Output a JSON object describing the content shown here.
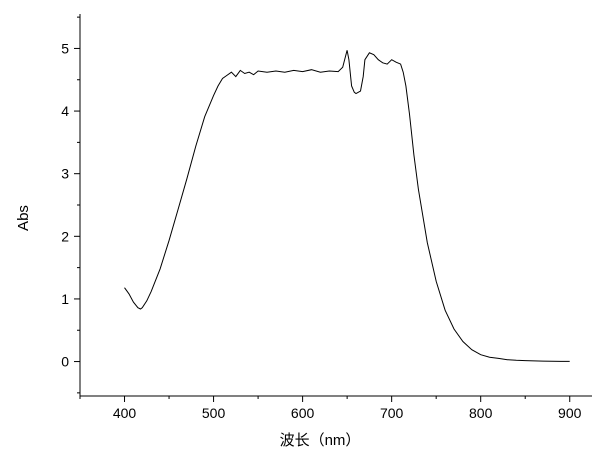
{
  "chart_data": {
    "type": "line",
    "xlabel": "波长（nm）",
    "ylabel": "Abs",
    "xlim": [
      350,
      925
    ],
    "ylim": [
      -0.55,
      5.55
    ],
    "x_ticks": [
      400,
      500,
      600,
      700,
      800,
      900
    ],
    "y_ticks": [
      0,
      1,
      2,
      3,
      4,
      5
    ],
    "grid": false,
    "series": [
      {
        "x": [
          400,
          405,
          410,
          415,
          418,
          420,
          425,
          430,
          440,
          450,
          460,
          470,
          480,
          490,
          500,
          505,
          510,
          515,
          520,
          525,
          530,
          535,
          540,
          545,
          550,
          560,
          570,
          580,
          590,
          600,
          610,
          620,
          630,
          640,
          645,
          650,
          652,
          655,
          658,
          660,
          665,
          668,
          670,
          675,
          680,
          685,
          690,
          695,
          700,
          705,
          710,
          713,
          716,
          720,
          725,
          730,
          740,
          750,
          760,
          770,
          780,
          790,
          800,
          810,
          820,
          830,
          840,
          850,
          860,
          870,
          880,
          890,
          900
        ],
        "y": [
          1.18,
          1.08,
          0.95,
          0.86,
          0.84,
          0.86,
          0.97,
          1.12,
          1.48,
          1.93,
          2.42,
          2.92,
          3.44,
          3.91,
          4.25,
          4.4,
          4.52,
          4.57,
          4.62,
          4.55,
          4.65,
          4.6,
          4.62,
          4.58,
          4.64,
          4.62,
          4.64,
          4.62,
          4.65,
          4.63,
          4.66,
          4.62,
          4.64,
          4.63,
          4.7,
          4.97,
          4.82,
          4.4,
          4.3,
          4.28,
          4.32,
          4.55,
          4.82,
          4.93,
          4.9,
          4.82,
          4.77,
          4.75,
          4.82,
          4.78,
          4.75,
          4.62,
          4.4,
          3.95,
          3.3,
          2.75,
          1.9,
          1.28,
          0.82,
          0.52,
          0.32,
          0.19,
          0.11,
          0.07,
          0.05,
          0.03,
          0.02,
          0.015,
          0.01,
          0.008,
          0.005,
          0.003,
          0.002
        ]
      }
    ]
  }
}
